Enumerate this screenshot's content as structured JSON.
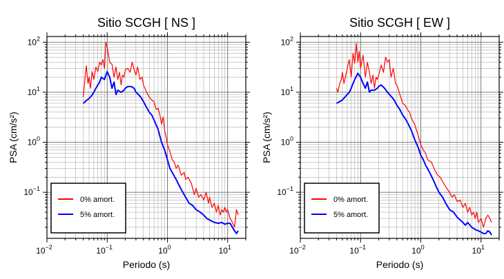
{
  "chart_data": [
    {
      "type": "line",
      "title": "Sitio SCGH [ NS ]",
      "xlabel": "Periodo (s)",
      "ylabel": "PSA (cm/s²)",
      "x_scale": "log",
      "y_scale": "log",
      "xlim": [
        0.01,
        20
      ],
      "ylim": [
        0.012,
        130
      ],
      "grid": true,
      "legend_position": "bottom-left",
      "x_ticks": [
        {
          "value": 0.01,
          "base": "10",
          "exp": "−2"
        },
        {
          "value": 0.1,
          "base": "10",
          "exp": "−1"
        },
        {
          "value": 1,
          "base": "10",
          "exp": "0"
        },
        {
          "value": 10,
          "base": "10",
          "exp": "1"
        }
      ],
      "y_ticks": [
        {
          "value": 0.1,
          "base": "10",
          "exp": "−1"
        },
        {
          "value": 1,
          "base": "10",
          "exp": "0"
        },
        {
          "value": 10,
          "base": "10",
          "exp": "1"
        },
        {
          "value": 100,
          "base": "10",
          "exp": "2"
        }
      ],
      "series": [
        {
          "name": "0% amort.",
          "color": "#ff0000",
          "x": [
            0.04,
            0.042,
            0.045,
            0.048,
            0.05,
            0.053,
            0.056,
            0.06,
            0.065,
            0.07,
            0.075,
            0.08,
            0.085,
            0.09,
            0.095,
            0.1,
            0.11,
            0.12,
            0.13,
            0.14,
            0.15,
            0.16,
            0.17,
            0.18,
            0.19,
            0.2,
            0.22,
            0.24,
            0.26,
            0.28,
            0.3,
            0.32,
            0.35,
            0.38,
            0.4,
            0.45,
            0.5,
            0.55,
            0.6,
            0.65,
            0.7,
            0.75,
            0.8,
            0.85,
            0.9,
            0.95,
            1.0,
            1.1,
            1.2,
            1.3,
            1.4,
            1.5,
            1.7,
            1.9,
            2.0,
            2.2,
            2.5,
            2.8,
            3.0,
            3.3,
            3.6,
            4.0,
            4.4,
            4.8,
            5.0,
            5.5,
            6.0,
            6.5,
            7.0,
            7.5,
            8.0,
            8.5,
            9.0,
            9.5,
            10,
            11,
            12,
            13,
            14,
            15
          ],
          "values": [
            8,
            15,
            34,
            15,
            20,
            12,
            26,
            18,
            32,
            26,
            40,
            35,
            45,
            30,
            100,
            80,
            40,
            36,
            20,
            32,
            18,
            25,
            14,
            22,
            20,
            28,
            30,
            25,
            40,
            28,
            22,
            32,
            18,
            20,
            14,
            10,
            8,
            7,
            6.5,
            4.5,
            4.8,
            3.5,
            2.3,
            3.2,
            1.7,
            1.3,
            0.9,
            0.65,
            0.45,
            0.4,
            0.3,
            0.35,
            0.22,
            0.25,
            0.18,
            0.2,
            0.15,
            0.09,
            0.12,
            0.08,
            0.09,
            0.07,
            0.1,
            0.06,
            0.08,
            0.05,
            0.06,
            0.04,
            0.055,
            0.035,
            0.045,
            0.04,
            0.05,
            0.04,
            0.045,
            0.03,
            0.025,
            0.02,
            0.045,
            0.035
          ]
        },
        {
          "name": "5% amort.",
          "color": "#0000ff",
          "x": [
            0.04,
            0.045,
            0.05,
            0.055,
            0.06,
            0.065,
            0.07,
            0.075,
            0.08,
            0.09,
            0.1,
            0.11,
            0.12,
            0.13,
            0.14,
            0.15,
            0.17,
            0.19,
            0.2,
            0.22,
            0.25,
            0.28,
            0.3,
            0.33,
            0.36,
            0.4,
            0.45,
            0.5,
            0.55,
            0.6,
            0.7,
            0.8,
            0.9,
            1.0,
            1.1,
            1.2,
            1.4,
            1.6,
            1.8,
            2.0,
            2.3,
            2.6,
            3.0,
            3.5,
            4.0,
            4.5,
            5.0,
            6.0,
            7.0,
            8.0,
            9.0,
            10,
            11,
            12,
            13,
            14,
            15
          ],
          "values": [
            6,
            6.8,
            7.5,
            8.5,
            10,
            12,
            14,
            16,
            20,
            18,
            26,
            20,
            12,
            16,
            9,
            11,
            10,
            11,
            12,
            13,
            13,
            12,
            10,
            9,
            8,
            6.5,
            5,
            4,
            3.5,
            2.8,
            1.8,
            1.0,
            0.7,
            0.45,
            0.3,
            0.25,
            0.18,
            0.13,
            0.1,
            0.08,
            0.06,
            0.055,
            0.045,
            0.04,
            0.035,
            0.03,
            0.028,
            0.025,
            0.024,
            0.025,
            0.023,
            0.024,
            0.024,
            0.02,
            0.017,
            0.015,
            0.017
          ]
        }
      ]
    },
    {
      "type": "line",
      "title": "Sitio SCGH [ EW ]",
      "xlabel": "Periodo (s)",
      "ylabel": "PSA (cm/s²)",
      "x_scale": "log",
      "y_scale": "log",
      "xlim": [
        0.01,
        20
      ],
      "ylim": [
        0.012,
        130
      ],
      "grid": true,
      "legend_position": "bottom-left",
      "x_ticks": [
        {
          "value": 0.01,
          "base": "10",
          "exp": "−2"
        },
        {
          "value": 0.1,
          "base": "10",
          "exp": "−1"
        },
        {
          "value": 1,
          "base": "10",
          "exp": "0"
        },
        {
          "value": 10,
          "base": "10",
          "exp": "1"
        }
      ],
      "y_ticks": [
        {
          "value": 0.1,
          "base": "10",
          "exp": "−1"
        },
        {
          "value": 1,
          "base": "10",
          "exp": "0"
        },
        {
          "value": 10,
          "base": "10",
          "exp": "1"
        },
        {
          "value": 100,
          "base": "10",
          "exp": "2"
        }
      ],
      "series": [
        {
          "name": "0% amort.",
          "color": "#ff0000",
          "x": [
            0.04,
            0.042,
            0.045,
            0.048,
            0.05,
            0.053,
            0.056,
            0.06,
            0.065,
            0.07,
            0.075,
            0.08,
            0.085,
            0.09,
            0.095,
            0.1,
            0.11,
            0.12,
            0.13,
            0.14,
            0.15,
            0.16,
            0.17,
            0.18,
            0.19,
            0.2,
            0.22,
            0.24,
            0.26,
            0.28,
            0.3,
            0.32,
            0.35,
            0.38,
            0.4,
            0.45,
            0.5,
            0.55,
            0.6,
            0.65,
            0.7,
            0.8,
            0.9,
            1.0,
            1.1,
            1.2,
            1.3,
            1.5,
            1.7,
            1.9,
            2.1,
            2.4,
            2.7,
            3.0,
            3.3,
            3.6,
            4.0,
            4.5,
            5.0,
            5.5,
            6.0,
            6.5,
            7.0,
            7.5,
            8.0,
            8.5,
            9.0,
            10,
            11,
            12,
            13,
            14,
            15
          ],
          "values": [
            12,
            10,
            15,
            18,
            25,
            15,
            20,
            30,
            45,
            20,
            60,
            38,
            95,
            40,
            65,
            30,
            55,
            20,
            40,
            25,
            15,
            22,
            12,
            20,
            18,
            22,
            35,
            25,
            50,
            40,
            45,
            20,
            30,
            15,
            14,
            9,
            6,
            5.5,
            4.5,
            4,
            3,
            2.2,
            1.4,
            0.9,
            0.7,
            0.6,
            0.45,
            0.4,
            0.28,
            0.22,
            0.2,
            0.15,
            0.12,
            0.1,
            0.08,
            0.09,
            0.065,
            0.07,
            0.05,
            0.06,
            0.04,
            0.05,
            0.035,
            0.04,
            0.03,
            0.04,
            0.025,
            0.03,
            0.02,
            0.03,
            0.035,
            0.03,
            0.025
          ]
        },
        {
          "name": "5% amort.",
          "color": "#0000ff",
          "x": [
            0.04,
            0.045,
            0.05,
            0.055,
            0.06,
            0.065,
            0.07,
            0.075,
            0.08,
            0.09,
            0.1,
            0.11,
            0.12,
            0.13,
            0.14,
            0.15,
            0.17,
            0.19,
            0.2,
            0.22,
            0.25,
            0.28,
            0.3,
            0.33,
            0.36,
            0.4,
            0.45,
            0.5,
            0.55,
            0.6,
            0.7,
            0.8,
            0.9,
            1.0,
            1.1,
            1.2,
            1.4,
            1.6,
            1.8,
            2.0,
            2.3,
            2.6,
            3.0,
            3.5,
            4.0,
            4.5,
            5.0,
            5.5,
            6.0,
            7.0,
            8.0,
            9.0,
            10,
            11,
            12,
            13,
            14,
            15
          ],
          "values": [
            6,
            6.5,
            7,
            8,
            9,
            10,
            12,
            15,
            18,
            24,
            20,
            15,
            12,
            16,
            10,
            11,
            11,
            12,
            13,
            14,
            12,
            10,
            9,
            8,
            7,
            5.5,
            4.5,
            3.5,
            3,
            2.5,
            1.7,
            1.1,
            0.8,
            0.55,
            0.45,
            0.35,
            0.25,
            0.18,
            0.13,
            0.1,
            0.08,
            0.06,
            0.045,
            0.04,
            0.032,
            0.028,
            0.025,
            0.022,
            0.025,
            0.02,
            0.018,
            0.017,
            0.016,
            0.015,
            0.015,
            0.017,
            0.016,
            0.014
          ]
        }
      ]
    }
  ]
}
